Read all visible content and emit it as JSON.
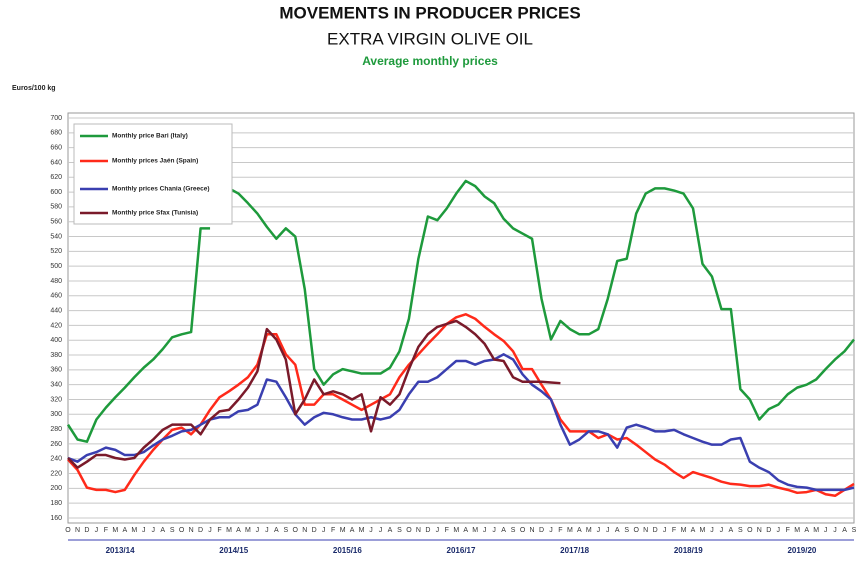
{
  "chart_data": {
    "type": "line",
    "title": "MOVEMENTS IN PRODUCER PRICES",
    "subtitle": "EXTRA VIRGIN OLIVE OIL",
    "subtitle2": "Average monthly prices",
    "y_label": "Euros/100 kg",
    "categories": [
      "O",
      "N",
      "D",
      "J",
      "F",
      "M",
      "A",
      "M",
      "J",
      "J",
      "A",
      "S",
      "O",
      "N",
      "D",
      "J",
      "F",
      "M",
      "A",
      "M",
      "J",
      "J",
      "A",
      "S",
      "O",
      "N",
      "D",
      "J",
      "F",
      "M",
      "A",
      "M",
      "J",
      "J",
      "A",
      "S",
      "O",
      "N",
      "D",
      "J",
      "F",
      "M",
      "A",
      "M",
      "J",
      "J",
      "A",
      "S",
      "O",
      "N",
      "D",
      "J",
      "F",
      "M",
      "A",
      "M",
      "J",
      "J",
      "A",
      "S",
      "O",
      "N",
      "D",
      "J",
      "F",
      "M",
      "A",
      "M",
      "J",
      "J",
      "A",
      "S",
      "O",
      "N",
      "D",
      "J",
      "F",
      "M",
      "A",
      "M",
      "J",
      "J",
      "A",
      "S"
    ],
    "year_labels": [
      "2013/14",
      "2014/15",
      "2015/16",
      "2016/17",
      "2017/18",
      "2018/19",
      "2019/20"
    ],
    "ylim": [
      160,
      700
    ],
    "yticks": [
      160,
      180,
      200,
      220,
      240,
      260,
      280,
      300,
      320,
      340,
      360,
      380,
      400,
      420,
      440,
      460,
      480,
      500,
      520,
      540,
      560,
      580,
      600,
      620,
      640,
      660,
      680,
      700
    ],
    "grid": true,
    "legend": "top-left",
    "series": [
      {
        "name": "Monthly price Bari (Italy)",
        "color": "#1e9a3c",
        "values": [
          286,
          266,
          263,
          293,
          309,
          323,
          336,
          350,
          363,
          374,
          388,
          404,
          408,
          411,
          551,
          551,
          null,
          605,
          598,
          585,
          571,
          553,
          537,
          551,
          540,
          469,
          361,
          340,
          354,
          361,
          358,
          355,
          355,
          355,
          363,
          385,
          429,
          510,
          567,
          562,
          578,
          598,
          615,
          608,
          594,
          585,
          564,
          551,
          544,
          537,
          456,
          401,
          426,
          415,
          408,
          408,
          415,
          456,
          507,
          510,
          571,
          598,
          605,
          605,
          602,
          598,
          578,
          503,
          486,
          442,
          442,
          334,
          320,
          293,
          307,
          313,
          327,
          336,
          340,
          347,
          361,
          374,
          385,
          401
        ]
      },
      {
        "name": "Monthly prices Jaén (Spain)",
        "color": "#ff2a1a",
        "values": [
          239,
          225,
          201,
          198,
          198,
          195,
          198,
          218,
          236,
          252,
          266,
          279,
          282,
          273,
          286,
          306,
          323,
          331,
          340,
          350,
          367,
          408,
          408,
          381,
          367,
          313,
          313,
          327,
          327,
          320,
          313,
          306,
          313,
          320,
          327,
          350,
          367,
          381,
          395,
          408,
          422,
          431,
          435,
          429,
          418,
          408,
          399,
          385,
          361,
          361,
          340,
          320,
          293,
          277,
          277,
          277,
          268,
          273,
          266,
          268,
          259,
          249,
          239,
          232,
          222,
          214,
          222,
          218,
          214,
          209,
          206,
          205,
          203,
          203,
          205,
          201,
          198,
          194,
          195,
          198,
          192,
          190,
          198,
          206
        ]
      },
      {
        "name": "Monthly prices Chania (Greece)",
        "color": "#3a3fb0",
        "values": [
          241,
          236,
          245,
          249,
          255,
          252,
          245,
          245,
          249,
          258,
          266,
          271,
          277,
          279,
          286,
          293,
          296,
          296,
          304,
          306,
          313,
          347,
          344,
          323,
          300,
          286,
          296,
          302,
          300,
          296,
          293,
          293,
          296,
          293,
          296,
          306,
          327,
          344,
          344,
          350,
          361,
          372,
          372,
          367,
          372,
          374,
          381,
          374,
          354,
          340,
          331,
          320,
          286,
          259,
          266,
          277,
          277,
          273,
          255,
          282,
          286,
          282,
          277,
          277,
          279,
          273,
          268,
          263,
          259,
          259,
          266,
          268,
          236,
          228,
          222,
          211,
          205,
          202,
          201,
          198,
          198,
          198,
          198,
          201
        ]
      },
      {
        "name": "Monthly price Sfax (Tunisia)",
        "color": "#7a1a2a",
        "values": [
          241,
          228,
          236,
          245,
          245,
          241,
          239,
          241,
          255,
          266,
          279,
          286,
          286,
          286,
          273,
          293,
          304,
          306,
          320,
          336,
          358,
          415,
          401,
          374,
          300,
          320,
          347,
          327,
          331,
          327,
          320,
          327,
          277,
          323,
          313,
          327,
          361,
          391,
          408,
          418,
          422,
          426,
          418,
          408,
          395,
          374,
          372,
          350,
          344,
          344,
          344,
          343,
          342,
          null,
          null,
          null,
          null,
          null,
          null,
          null,
          null,
          null,
          null,
          null,
          null,
          null,
          null,
          null,
          null,
          null,
          null,
          null,
          null,
          null,
          null,
          null,
          null,
          null,
          null,
          null,
          null,
          null,
          null,
          null
        ]
      }
    ]
  }
}
